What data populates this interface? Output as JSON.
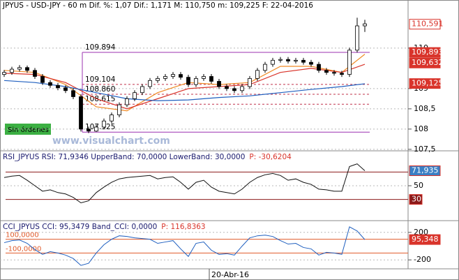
{
  "header": "JPYUS  -  USD-JPY  -   60 m Dif. %: 1,07 Dif.: 1,171 M: 110,750 m: 109,225 F: 22-04-2016",
  "watermark": "www.visualchart.com",
  "status": "Sin órdenes",
  "x_label": "20-Abr-16",
  "chart_data": [
    {
      "type": "candlestick",
      "open": [
        109.35,
        109.4,
        109.48,
        109.52,
        109.45,
        109.3,
        109.15,
        109.08,
        109.02,
        108.95,
        108.8,
        108.0,
        107.95,
        108.05,
        108.2,
        108.35,
        108.6,
        108.75,
        108.9,
        109.05,
        109.2,
        109.25,
        109.3,
        109.35,
        109.28,
        109.1,
        109.25,
        109.3,
        109.18,
        109.05,
        109.0,
        108.95,
        109.05,
        109.25,
        109.45,
        109.6,
        109.7,
        109.72,
        109.68,
        109.7,
        109.65,
        109.6,
        109.45,
        109.4,
        109.38,
        109.35,
        109.95,
        110.55
      ],
      "high": [
        109.46,
        109.54,
        109.58,
        109.57,
        109.51,
        109.36,
        109.21,
        109.14,
        109.08,
        109.01,
        108.86,
        108.06,
        108.11,
        108.26,
        108.41,
        108.66,
        108.81,
        108.96,
        109.11,
        109.26,
        109.31,
        109.36,
        109.41,
        109.41,
        109.34,
        109.31,
        109.36,
        109.36,
        109.24,
        109.11,
        109.06,
        109.11,
        109.31,
        109.51,
        109.66,
        109.76,
        109.78,
        109.78,
        109.76,
        109.76,
        109.71,
        109.66,
        109.51,
        109.46,
        109.44,
        110.01,
        110.75,
        110.7
      ],
      "low": [
        109.29,
        109.34,
        109.42,
        109.39,
        109.24,
        109.09,
        109.02,
        108.96,
        108.89,
        108.74,
        107.94,
        107.9,
        107.93,
        107.99,
        108.14,
        108.29,
        108.54,
        108.69,
        108.84,
        108.99,
        109.14,
        109.19,
        109.24,
        109.22,
        109.04,
        109.04,
        109.19,
        109.12,
        108.99,
        108.94,
        108.89,
        108.89,
        108.99,
        109.19,
        109.39,
        109.54,
        109.64,
        109.62,
        109.62,
        109.59,
        109.54,
        109.39,
        109.34,
        109.32,
        109.29,
        109.29,
        109.89,
        110.4
      ],
      "close": [
        109.4,
        109.48,
        109.52,
        109.45,
        109.3,
        109.15,
        109.08,
        109.02,
        108.95,
        108.8,
        108.0,
        107.95,
        108.05,
        108.2,
        108.35,
        108.6,
        108.75,
        108.9,
        109.05,
        109.2,
        109.25,
        109.3,
        109.35,
        109.28,
        109.1,
        109.25,
        109.3,
        109.18,
        109.05,
        109.0,
        108.95,
        109.05,
        109.25,
        109.45,
        109.6,
        109.7,
        109.72,
        109.68,
        109.7,
        109.65,
        109.6,
        109.45,
        109.4,
        109.38,
        109.35,
        109.95,
        110.55,
        110.6
      ],
      "up_color": "#ffffff",
      "down_color": "#000000",
      "series": [
        {
          "color": "#f08a24",
          "x": [
            0,
            4,
            8,
            12,
            16,
            20,
            24,
            28,
            32,
            36,
            40,
            44,
            47
          ],
          "values": [
            109.45,
            109.4,
            109.1,
            108.55,
            108.45,
            108.9,
            109.15,
            109.1,
            109.15,
            109.55,
            109.55,
            109.4,
            109.85
          ]
        },
        {
          "color": "#d9342b",
          "x": [
            0,
            4,
            8,
            12,
            16,
            20,
            24,
            28,
            32,
            36,
            40,
            44,
            47
          ],
          "values": [
            109.38,
            109.35,
            109.15,
            108.75,
            108.5,
            108.75,
            109.0,
            109.05,
            109.1,
            109.4,
            109.5,
            109.4,
            109.6
          ]
        },
        {
          "color": "#1f5fbf",
          "x": [
            0,
            4,
            8,
            12,
            16,
            20,
            24,
            28,
            32,
            36,
            40,
            44,
            47
          ],
          "values": [
            109.2,
            109.15,
            109.05,
            108.9,
            108.75,
            108.7,
            108.72,
            108.78,
            108.82,
            108.9,
            108.98,
            109.05,
            109.12
          ]
        }
      ],
      "ylim": [
        107.48,
        110.93
      ],
      "yticks": [
        {
          "value": 107.5,
          "label": "107,5"
        },
        108,
        {
          "value": 108.5,
          "label": "108,5"
        },
        109,
        110
      ],
      "grid": true,
      "levels": [
        {
          "value": 109.894,
          "color": "#9b30b0"
        },
        {
          "value": 109.104,
          "color": "#c0304a"
        },
        {
          "value": 108.86,
          "label": "108.860",
          "color": "#c0304a"
        },
        {
          "value": 108.615,
          "color": "#c0304a"
        },
        {
          "value": 107.925,
          "color": "#9b30b0"
        }
      ],
      "price_tags": [
        {
          "value": 110.591,
          "label": "110,591",
          "fill": "#ffffff",
          "text": "#d9342b"
        },
        {
          "value": 109.893,
          "label": "109,893",
          "fill": "#d9342b",
          "text": "#ffffff"
        },
        {
          "value": 109.632,
          "label": "109,632",
          "fill": "#d9342b",
          "text": "#ffffff"
        },
        {
          "value": 109.125,
          "label": "109,125",
          "fill": "#d9342b",
          "text": "#ffffff"
        }
      ]
    },
    {
      "type": "line",
      "title": "RSI_JPYUS RSI: 71,9346 UpperBand: 70,0000 LowerBand: 30,0000",
      "subtitle": "P: -30,6204",
      "values": [
        62,
        64,
        65,
        58,
        50,
        42,
        44,
        40,
        38,
        33,
        25,
        28,
        40,
        48,
        55,
        60,
        62,
        63,
        64,
        65,
        60,
        62,
        63,
        55,
        45,
        55,
        58,
        48,
        42,
        40,
        38,
        45,
        55,
        62,
        66,
        68,
        65,
        58,
        60,
        55,
        52,
        45,
        44,
        42,
        42,
        78,
        82,
        72
      ],
      "color": "#111111",
      "ylim": [
        0,
        100
      ],
      "yticks": [
        50
      ],
      "grid": true,
      "bands": [
        {
          "value": 70
        },
        {
          "value": 30
        }
      ],
      "band_color": "#8b1a1a",
      "price_tags": [
        {
          "value": 71.935,
          "label": "71,935",
          "fill": "#3a7fc4",
          "text": "#ffffff"
        },
        {
          "value": 30,
          "fill": "#8b1a1a",
          "text": "#ffffff"
        }
      ]
    },
    {
      "type": "line",
      "title": "CCI_JPYUS CCI: 95,3479 Band_CCI: 0,0000",
      "subtitle": "P: 116,8363",
      "values": [
        50,
        80,
        90,
        40,
        -50,
        -120,
        -80,
        -100,
        -130,
        -180,
        -280,
        -250,
        -100,
        20,
        100,
        150,
        140,
        120,
        110,
        100,
        40,
        60,
        80,
        -40,
        -150,
        40,
        60,
        -60,
        -120,
        -110,
        -130,
        0,
        120,
        150,
        160,
        140,
        80,
        30,
        40,
        -20,
        -40,
        -130,
        -90,
        -100,
        -120,
        280,
        220,
        95
      ],
      "color": "#1f5fbf",
      "ylim": [
        -330,
        360
      ],
      "yticks": [
        200,
        -200
      ],
      "grid": true,
      "bands": [
        {
          "value": 100,
          "label": "100,0000"
        },
        {
          "value": -100,
          "label": "-100,0000"
        }
      ],
      "band_color": "#e05a2a",
      "price_tags": [
        {
          "value": 95.348,
          "label": "95,348",
          "fill": "#d9342b",
          "text": "#ffffff"
        }
      ]
    }
  ]
}
